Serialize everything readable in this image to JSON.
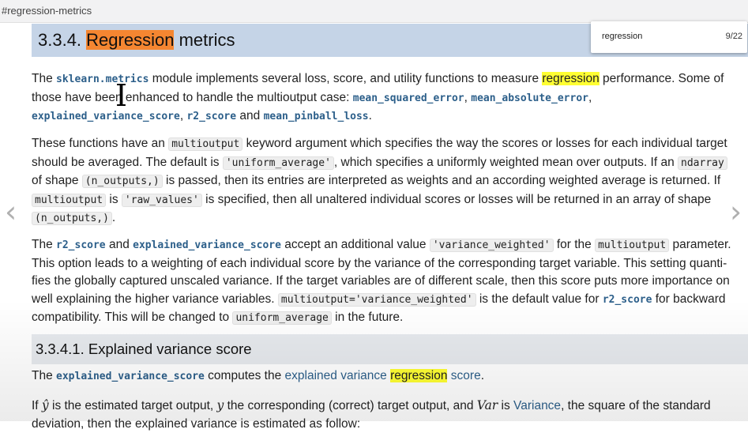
{
  "url_fragment": "#regression-metrics",
  "find": {
    "query": "regression",
    "count": "9/22"
  },
  "h3": {
    "number": "3.3.4.",
    "word": "Regression",
    "rest": "metrics"
  },
  "p1": {
    "t1": "The ",
    "mod": "sklearn.metrics",
    "t2": " module implements several loss, score, and utility functions to measure ",
    "hl": "regression",
    "t3": " performance. Some of those have been enhanced to handle the multioutput case: ",
    "f1": "mean_squared_error",
    "c1": ", ",
    "f2": "mean_absolute_error",
    "c2": ", ",
    "f3": "explained_variance_score",
    "c3": ", ",
    "f4": "r2_score",
    "t4": " and ",
    "f5": "mean_pinball_loss",
    "t5": "."
  },
  "p2": {
    "t1": "These functions have an ",
    "c1": "multioutput",
    "t2": " keyword argument which specifies the way the scores or losses for each individual target should be averaged. The default is ",
    "c2": "'uniform_average'",
    "t3": ", which specifies a uniformly weighted mean over outputs. If an ",
    "c3": "ndarray",
    "t4": " of shape ",
    "c4": "(n_outputs,)",
    "t5": " is passed, then its entries are interpreted as weights and an according weighted average is returned. If ",
    "c5": "multioutput",
    "t6": " is ",
    "c6": "'raw_values'",
    "t7": " is specified, then all unaltered individual scores or losses will be returned in an array of shape ",
    "c7": "(n_outputs,)",
    "t8": "."
  },
  "p3": {
    "t1": "The ",
    "f1": "r2_score",
    "t2": " and ",
    "f2": "explained_variance_score",
    "t3": " accept an additional value ",
    "c1": "'variance_weighted'",
    "t4": " for the ",
    "c2": "multioutput",
    "t5": " parameter. This option leads to a weighting of each individual score by the variance of the corresponding target variable. This setting quanti-fies the globally captured unscaled variance. If the target variables are of different scale, then this score puts more importance on well explaining the higher variance variables. ",
    "c3": "multioutput='variance_weighted'",
    "t6": " is the default value for ",
    "f3": "r2_score",
    "t7": " for backward compatibility. This will be changed to ",
    "c4": "uniform_average",
    "t8": " in the future."
  },
  "h4": "3.3.4.1. Explained variance score",
  "p4": {
    "t1": "The ",
    "f1": "explained_variance_score",
    "t2": " computes the ",
    "l1": "explained variance",
    "t3": " ",
    "hl": "regression",
    "t4": " ",
    "l2": "score",
    "t5": "."
  },
  "p5": {
    "t1": "If ",
    "m1": "ŷ",
    "t2": " is the estimated target output, ",
    "m2": "y",
    "t3": " the corresponding (correct) target output, and ",
    "m3": "Var",
    "t4": " is ",
    "l1": "Variance",
    "t5": ", the square of the standard deviation, then the explained variance is estimated as follow:"
  },
  "nav": {
    "prev": "‹",
    "next": "›"
  },
  "colors": {
    "heading_bg": "#c5d4e7",
    "find_highlight": "#ffff33",
    "current_highlight": "#f58631",
    "link": "#2c5f8a"
  }
}
